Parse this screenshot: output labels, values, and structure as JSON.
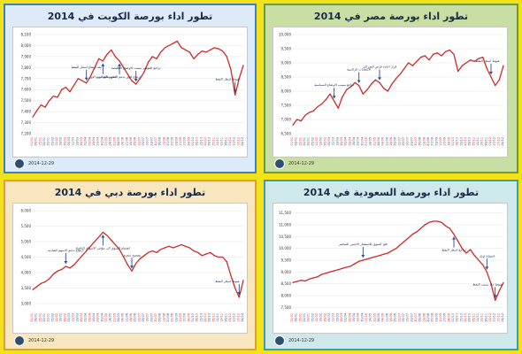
{
  "panels": [
    {
      "title": "تطور اداء بورصة الكويت في 2014",
      "date": "2014-12-29",
      "logo_icon": "anadolu-agency-logo"
    },
    {
      "title": "تطور اداء بورصة مصر في 2014",
      "date": "2014-12-29",
      "logo_icon": "anadolu-agency-logo"
    },
    {
      "title": "تطور اداء بورصة دبي في 2014",
      "date": "2014-12-29",
      "logo_icon": "anadolu-agency-logo"
    },
    {
      "title": "تطور اداء بورصة السعودية في 2014",
      "date": "2014-12-29",
      "logo_icon": "anadolu-agency-logo"
    }
  ],
  "colors": {
    "line": "#cc2a2a",
    "arrow": "#2a4f8a",
    "grid": "#e4e4e4",
    "tick_red": "#cc2a2a",
    "tick_blue": "#2a4f8a"
  },
  "chart_data": [
    {
      "type": "line",
      "title": "تطور اداء بورصة الكويت في 2014",
      "x": [
        "01/01",
        "08/01",
        "15/01",
        "22/01",
        "29/01",
        "05/02",
        "12/02",
        "19/02",
        "26/02",
        "05/03",
        "12/03",
        "19/03",
        "26/03",
        "02/04",
        "09/04",
        "16/04",
        "23/04",
        "30/04",
        "07/05",
        "14/05",
        "21/05",
        "28/05",
        "04/06",
        "11/06",
        "18/06",
        "25/06",
        "02/07",
        "09/07",
        "16/07",
        "23/07",
        "30/07",
        "06/08",
        "13/08",
        "20/08",
        "27/08",
        "03/09",
        "10/09",
        "17/09",
        "24/09",
        "01/10",
        "08/10",
        "15/10",
        "22/10",
        "29/10",
        "05/11",
        "12/11",
        "19/11",
        "26/11",
        "03/12",
        "10/12",
        "17/12",
        "24/12"
      ],
      "values": [
        7350,
        7410,
        7460,
        7440,
        7500,
        7540,
        7530,
        7600,
        7620,
        7580,
        7640,
        7700,
        7680,
        7660,
        7720,
        7800,
        7880,
        7860,
        7920,
        7960,
        7900,
        7860,
        7800,
        7740,
        7680,
        7650,
        7700,
        7760,
        7850,
        7900,
        7880,
        7940,
        7980,
        8000,
        8020,
        8040,
        7980,
        7960,
        7940,
        7880,
        7920,
        7950,
        7940,
        7960,
        7980,
        7970,
        7950,
        7900,
        7780,
        7550,
        7700,
        7820
      ],
      "ylim": [
        7200,
        8100
      ],
      "yticks": [
        7200,
        7300,
        7400,
        7500,
        7600,
        7700,
        7800,
        7900,
        8000,
        8100
      ],
      "annotations": [
        {
          "text": "بعد ارتفاع اسعار النفط",
          "x_index": 13
        },
        {
          "text": "اعلان نتائج الربع الاول",
          "x_index": 17
        },
        {
          "text": "ارتفاع قوي بدعم الاسهم القيادية",
          "x_index": 21
        },
        {
          "text": "تراجع المؤشر بسبب الاوضاع الاقليمية",
          "x_index": 25
        },
        {
          "text": "هبوط اسعار النفط",
          "x_index": 49
        }
      ]
    },
    {
      "type": "line",
      "title": "تطور اداء بورصة مصر في 2014",
      "x": [
        "01/01",
        "08/01",
        "15/01",
        "22/01",
        "29/01",
        "05/02",
        "12/02",
        "19/02",
        "26/02",
        "05/03",
        "12/03",
        "19/03",
        "26/03",
        "02/04",
        "09/04",
        "16/04",
        "23/04",
        "30/04",
        "07/05",
        "14/05",
        "21/05",
        "28/05",
        "04/06",
        "11/06",
        "18/06",
        "25/06",
        "02/07",
        "09/07",
        "16/07",
        "23/07",
        "30/07",
        "06/08",
        "13/08",
        "20/08",
        "27/08",
        "03/09",
        "10/09",
        "17/09",
        "24/09",
        "01/10",
        "08/10",
        "15/10",
        "22/10",
        "29/10",
        "05/11",
        "12/11",
        "19/11",
        "26/11",
        "03/12",
        "10/12",
        "17/12",
        "24/12"
      ],
      "values": [
        6800,
        7000,
        6950,
        7150,
        7250,
        7300,
        7450,
        7550,
        7700,
        7900,
        7650,
        7400,
        7800,
        8050,
        8150,
        8300,
        8200,
        7900,
        8050,
        8250,
        8400,
        8300,
        8100,
        8000,
        8250,
        8450,
        8600,
        8800,
        9000,
        8900,
        9050,
        9200,
        9250,
        9100,
        9300,
        9350,
        9250,
        9400,
        9450,
        9300,
        8700,
        8900,
        9000,
        9100,
        9050,
        9150,
        9200,
        8800,
        8500,
        8200,
        8400,
        8900
      ],
      "ylim": [
        6500,
        10000
      ],
      "yticks": [
        6500,
        7000,
        7500,
        8000,
        8500,
        9000,
        9500,
        10000
      ],
      "annotations": [
        {
          "text": "تراجع بسبب الاوضاع السياسية",
          "x_index": 10
        },
        {
          "text": "الانتخابات الرئاسية",
          "x_index": 16
        },
        {
          "text": "قرار اعادة فرض الضرائب",
          "x_index": 21
        },
        {
          "text": "هبوط اسعار النفط",
          "x_index": 48
        }
      ]
    },
    {
      "type": "line",
      "title": "تطور اداء بورصة دبي في 2014",
      "x": [
        "01/01",
        "08/01",
        "15/01",
        "22/01",
        "29/01",
        "05/02",
        "12/02",
        "19/02",
        "26/02",
        "05/03",
        "12/03",
        "19/03",
        "26/03",
        "02/04",
        "09/04",
        "16/04",
        "23/04",
        "30/04",
        "07/05",
        "14/05",
        "21/05",
        "28/05",
        "04/06",
        "11/06",
        "18/06",
        "25/06",
        "02/07",
        "09/07",
        "16/07",
        "23/07",
        "30/07",
        "06/08",
        "13/08",
        "20/08",
        "27/08",
        "03/09",
        "10/09",
        "17/09",
        "24/09",
        "01/10",
        "08/10",
        "15/10",
        "22/10",
        "29/10",
        "05/11",
        "12/11",
        "19/11",
        "26/11",
        "03/12",
        "10/12",
        "17/12",
        "24/12"
      ],
      "values": [
        3450,
        3550,
        3650,
        3700,
        3800,
        3950,
        4050,
        4100,
        4200,
        4150,
        4250,
        4400,
        4550,
        4700,
        4850,
        5000,
        5150,
        5300,
        5200,
        5050,
        4900,
        4750,
        4500,
        4250,
        4050,
        4300,
        4450,
        4550,
        4650,
        4700,
        4650,
        4750,
        4800,
        4850,
        4800,
        4850,
        4900,
        4850,
        4800,
        4700,
        4650,
        4550,
        4600,
        4650,
        4550,
        4500,
        4500,
        4350,
        3900,
        3500,
        3200,
        3750
      ],
      "ylim": [
        2800,
        6000
      ],
      "yticks": [
        3000,
        3500,
        4000,
        4500,
        5000,
        5500,
        6000
      ],
      "annotations": [
        {
          "text": "ارتفاع بدعم الاسهم القيادية",
          "x_index": 8
        },
        {
          "text": "انضمام السوق الى مؤشر الاسواق الناشئة",
          "x_index": 17
        },
        {
          "text": "تصحيح سعري",
          "x_index": 24
        },
        {
          "text": "هبوط اسعار النفط",
          "x_index": 50
        }
      ]
    },
    {
      "type": "line",
      "title": "تطور اداء بورصة السعودية في 2014",
      "x": [
        "01/01",
        "08/01",
        "15/01",
        "22/01",
        "29/01",
        "05/02",
        "12/02",
        "19/02",
        "26/02",
        "05/03",
        "12/03",
        "19/03",
        "26/03",
        "02/04",
        "09/04",
        "16/04",
        "23/04",
        "30/04",
        "07/05",
        "14/05",
        "21/05",
        "28/05",
        "04/06",
        "11/06",
        "18/06",
        "25/06",
        "02/07",
        "09/07",
        "16/07",
        "23/07",
        "30/07",
        "06/08",
        "13/08",
        "20/08",
        "27/08",
        "03/09",
        "10/09",
        "17/09",
        "24/09",
        "01/10",
        "08/10",
        "15/10",
        "22/10",
        "29/10",
        "05/11",
        "12/11",
        "19/11",
        "26/11",
        "03/12",
        "10/12",
        "17/12",
        "24/12"
      ],
      "values": [
        8550,
        8600,
        8650,
        8620,
        8700,
        8750,
        8800,
        8900,
        8950,
        9000,
        9050,
        9100,
        9150,
        9200,
        9250,
        9350,
        9450,
        9500,
        9550,
        9600,
        9650,
        9700,
        9750,
        9800,
        9900,
        10000,
        10150,
        10300,
        10450,
        10600,
        10700,
        10850,
        11000,
        11100,
        11150,
        11150,
        11100,
        10950,
        10850,
        10600,
        10300,
        10000,
        9800,
        9950,
        9700,
        9500,
        9300,
        9000,
        8500,
        7800,
        8200,
        8550
      ],
      "ylim": [
        7400,
        11600
      ],
      "yticks": [
        7500,
        8000,
        8500,
        9000,
        9500,
        10000,
        10500,
        11000,
        11500
      ],
      "annotations": [
        {
          "text": "فتح السوق للاستثمار الاجنبي المباشر",
          "x_index": 17
        },
        {
          "text": "تراجع اسعار النفط",
          "x_index": 39
        },
        {
          "text": "اجتماع اوبك",
          "x_index": 47
        },
        {
          "text": "هبوط حاد بسبب النفط",
          "x_index": 49
        }
      ]
    }
  ]
}
